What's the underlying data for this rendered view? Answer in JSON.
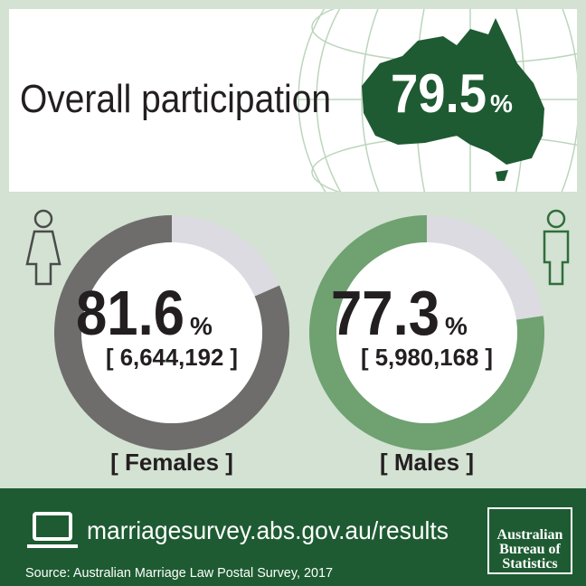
{
  "header": {
    "title": "Overall participation",
    "value": "79.5",
    "unit": "%"
  },
  "chart_data": [
    {
      "type": "donut",
      "value": 81.6,
      "unit": "%",
      "ylim": [
        0,
        100
      ],
      "count_label": "[ 6,644,192 ]",
      "label": "[ Females ]",
      "color": "#6e6d6c",
      "rest_color": "#dcdbe1"
    },
    {
      "type": "donut",
      "value": 77.3,
      "unit": "%",
      "ylim": [
        0,
        100
      ],
      "count_label": "[ 5,980,168 ]",
      "label": "[ Males ]",
      "color": "#6fa171",
      "rest_color": "#dcdbe1"
    }
  ],
  "footer": {
    "url": "marriagesurvey.abs.gov.au/results",
    "source": "Source: Australian Marriage Law Postal Survey, 2017",
    "logo": [
      "Australian",
      "Bureau of",
      "Statistics"
    ]
  }
}
